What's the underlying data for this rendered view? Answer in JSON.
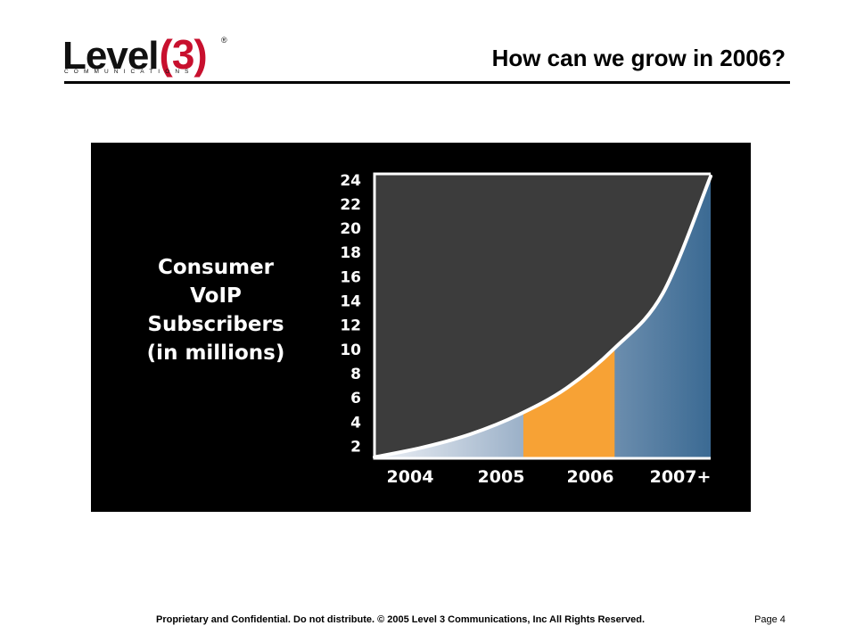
{
  "header": {
    "logo_word": "Level",
    "logo_number": "(3)",
    "logo_reg": "®",
    "logo_tagline": "COMMUNICATIONS",
    "title": "How can we grow in 2006?"
  },
  "footer": {
    "text": "Proprietary and Confidential. Do not distribute. © 2005 Level 3 Communications, Inc  All Rights Reserved.",
    "page": "Page 4"
  },
  "colors": {
    "panel_background": "#000000",
    "plot_fill": "#3c3c3c",
    "highlight_orange": "#f7a235",
    "gradient_light": "#eef1f6",
    "gradient_mid": "#90a8c2",
    "gradient_dark": "#3b6a93",
    "curve": "#ffffff",
    "text": "#ffffff"
  },
  "chart_data": {
    "type": "area",
    "title_lines": [
      "Consumer",
      "VoIP",
      "Subscribers",
      "(in millions)"
    ],
    "categories": [
      "2004",
      "2005",
      "2006",
      "2007+"
    ],
    "y_ticks": [
      "2",
      "4",
      "6",
      "8",
      "10",
      "12",
      "14",
      "16",
      "18",
      "20",
      "22",
      "24"
    ],
    "ylim": [
      1,
      24.5
    ],
    "series": [
      {
        "x": [
          2004.0,
          2004.5,
          2005.0,
          2005.5,
          2006.0,
          2006.5,
          2007.0,
          2007.5
        ],
        "values": [
          1.1,
          1.9,
          3.0,
          4.6,
          6.8,
          10.1,
          14.6,
          24.3
        ]
      }
    ],
    "highlight": {
      "label": "2006",
      "x_start": 2005.55,
      "x_end": 2006.5
    },
    "grid": false,
    "legend": "none"
  }
}
